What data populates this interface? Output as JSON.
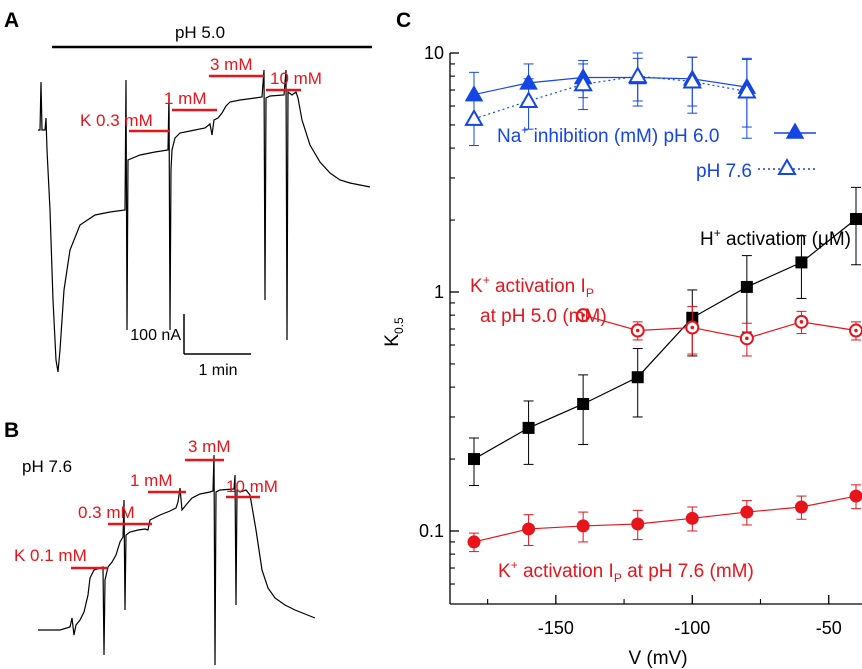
{
  "panels": {
    "a": {
      "letter": "A",
      "bar_label": "pH 5.0",
      "steps": [
        "K 0.3 mM",
        "1 mM",
        "3 mM",
        "10 mM"
      ],
      "scale_current": "100 nA",
      "scale_time": "1 min"
    },
    "b": {
      "letter": "B",
      "ph_label": "pH 7.6",
      "steps": [
        "K 0.1 mM",
        "0.3 mM",
        "1 mM",
        "3 mM",
        "10 mM"
      ]
    },
    "c": {
      "letter": "C"
    }
  },
  "colors": {
    "blue": "#1446e6",
    "red": "#e8141c",
    "black": "#000000"
  },
  "chart_data": {
    "type": "scatter",
    "xlabel": "V (mV)",
    "ylabel": "K0.5",
    "xlim": [
      -182,
      -40
    ],
    "ylim": [
      0.05,
      10
    ],
    "yscale": "log",
    "xticks": [
      "-150",
      "-100",
      "-50"
    ],
    "xtick_values": [
      -150,
      -100,
      -50
    ],
    "yticks": [
      "0.1",
      "1",
      "10"
    ],
    "ytick_values": [
      0.1,
      1,
      10
    ],
    "series": [
      {
        "name": "Na+ inhibition (mM) pH 6.0",
        "color": "#1446e6",
        "marker": "triangle-filled",
        "line": "solid",
        "x": [
          -180,
          -160,
          -140,
          -120,
          -100,
          -80
        ],
        "y": [
          6.7,
          7.5,
          7.9,
          7.9,
          7.8,
          7.2
        ],
        "err": [
          1.6,
          1.5,
          1.4,
          1.6,
          1.8,
          2.3
        ]
      },
      {
        "name": "pH 7.6",
        "color": "#1446e6",
        "marker": "triangle-open",
        "line": "dotted",
        "x": [
          -180,
          -160,
          -140,
          -120,
          -100,
          -80
        ],
        "y": [
          5.3,
          6.3,
          7.4,
          8.0,
          7.6,
          6.9
        ],
        "err": [
          1.2,
          1.5,
          1.6,
          2.0,
          2.0,
          2.5
        ]
      },
      {
        "name": "H+ activation (μM)",
        "color": "#000000",
        "marker": "square-filled",
        "line": "solid",
        "x": [
          -180,
          -160,
          -140,
          -120,
          -100,
          -80,
          -60,
          -40
        ],
        "y": [
          0.2,
          0.27,
          0.34,
          0.44,
          0.78,
          1.05,
          1.33,
          2.02
        ],
        "err": [
          0.045,
          0.08,
          0.11,
          0.14,
          0.24,
          0.37,
          0.39,
          0.72
        ]
      },
      {
        "name": "K+ activation IP at pH 5.0 (mM)",
        "color": "#e8141c",
        "marker": "circle-dot",
        "line": "solid",
        "x": [
          -140,
          -120,
          -100,
          -80,
          -60,
          -40
        ],
        "y": [
          0.8,
          0.69,
          0.71,
          0.64,
          0.75,
          0.69
        ],
        "err": [
          0.0,
          0.06,
          0.16,
          0.1,
          0.08,
          0.06
        ]
      },
      {
        "name": "K+ activation IP at pH 7.6 (mM)",
        "color": "#e8141c",
        "marker": "circle-filled",
        "line": "solid",
        "x": [
          -180,
          -160,
          -140,
          -120,
          -100,
          -80,
          -60,
          -40
        ],
        "y": [
          0.09,
          0.102,
          0.105,
          0.107,
          0.113,
          0.12,
          0.126,
          0.14
        ],
        "err": [
          0.008,
          0.015,
          0.015,
          0.015,
          0.013,
          0.014,
          0.014,
          0.016
        ]
      }
    ]
  }
}
